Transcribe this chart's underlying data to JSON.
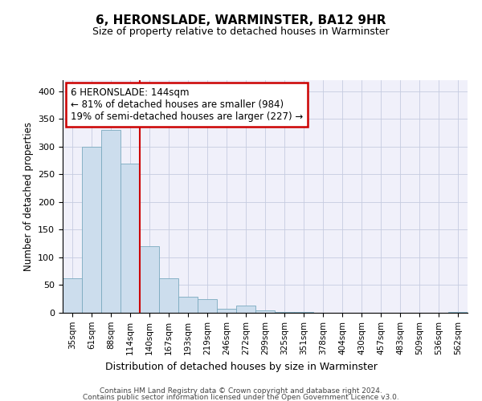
{
  "title": "6, HERONSLADE, WARMINSTER, BA12 9HR",
  "subtitle": "Size of property relative to detached houses in Warminster",
  "xlabel": "Distribution of detached houses by size in Warminster",
  "ylabel": "Number of detached properties",
  "bar_color": "#ccdded",
  "bar_edge_color": "#7aaabf",
  "bin_labels": [
    "35sqm",
    "61sqm",
    "88sqm",
    "114sqm",
    "140sqm",
    "167sqm",
    "193sqm",
    "219sqm",
    "246sqm",
    "272sqm",
    "299sqm",
    "325sqm",
    "351sqm",
    "378sqm",
    "404sqm",
    "430sqm",
    "457sqm",
    "483sqm",
    "509sqm",
    "536sqm",
    "562sqm"
  ],
  "bar_heights": [
    62,
    300,
    330,
    270,
    120,
    63,
    29,
    25,
    7,
    13,
    5,
    2,
    1,
    0,
    0,
    0,
    0,
    0,
    0,
    0,
    2
  ],
  "ylim": [
    0,
    420
  ],
  "yticks": [
    0,
    50,
    100,
    150,
    200,
    250,
    300,
    350,
    400
  ],
  "annotation_line1": "6 HERONSLADE: 144sqm",
  "annotation_line2": "← 81% of detached houses are smaller (984)",
  "annotation_line3": "19% of semi-detached houses are larger (227) →",
  "vline_x": 4,
  "vline_color": "#cc0000",
  "background_color": "#f0f0fa",
  "grid_color": "#c5cce0",
  "footer_line1": "Contains HM Land Registry data © Crown copyright and database right 2024.",
  "footer_line2": "Contains public sector information licensed under the Open Government Licence v3.0."
}
